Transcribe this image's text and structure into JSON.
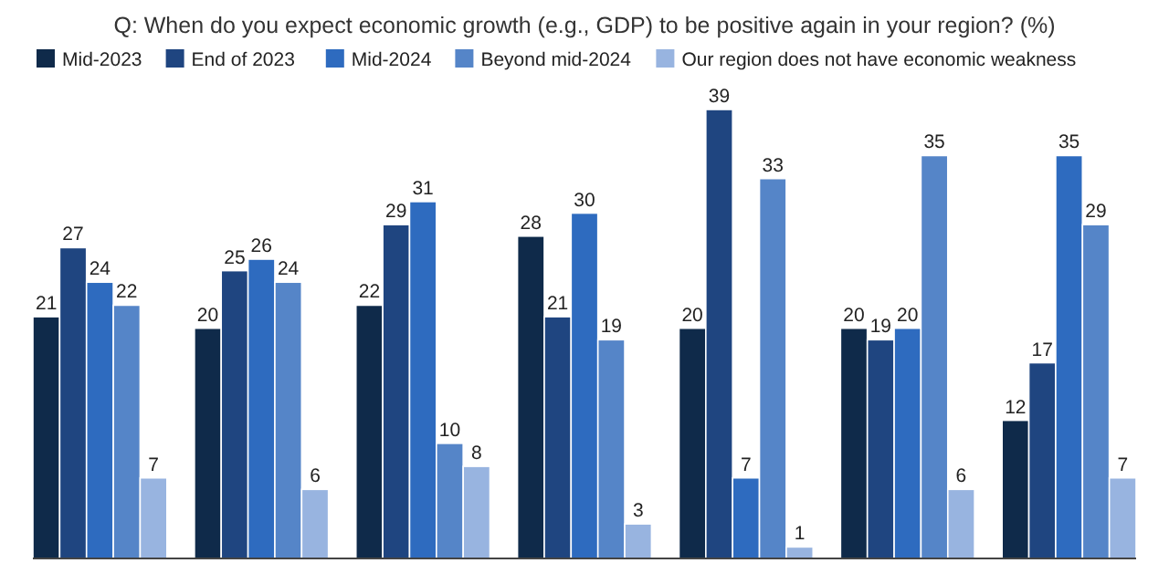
{
  "chart_data": {
    "type": "bar",
    "subtitle": "Q: When do you expect economic growth (e.g., GDP) to be positive again in your region? (%)",
    "categories": [
      null,
      null,
      null,
      null,
      null,
      null,
      null
    ],
    "series": [
      {
        "name": "Mid-2023",
        "color": "#0f2a4a",
        "values": [
          21,
          20,
          22,
          28,
          20,
          20,
          12
        ]
      },
      {
        "name": "End of 2023",
        "color": "#1f4580",
        "values": [
          27,
          25,
          29,
          21,
          39,
          19,
          17
        ]
      },
      {
        "name": "Mid-2024",
        "color": "#2e6bbf",
        "values": [
          24,
          26,
          31,
          30,
          7,
          20,
          35
        ]
      },
      {
        "name": "Beyond mid-2024",
        "color": "#5585c8",
        "values": [
          22,
          24,
          10,
          19,
          33,
          35,
          29
        ]
      },
      {
        "name": "Our region does not have economic weakness",
        "color": "#98b4e0",
        "values": [
          7,
          6,
          8,
          3,
          1,
          6,
          7
        ]
      }
    ],
    "data_labels": true,
    "legend": "top"
  }
}
